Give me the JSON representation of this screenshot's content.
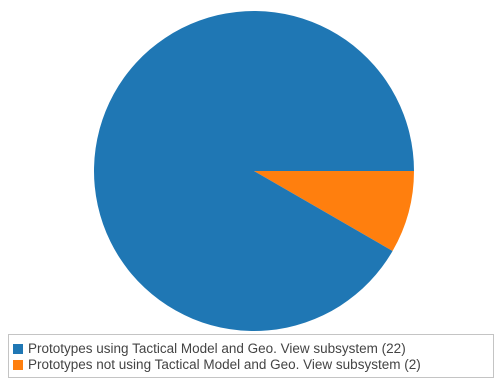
{
  "chart_data": {
    "type": "pie",
    "categories": [
      "Prototypes using Tactical Model and Geo. View subsystem (22)",
      "Prototypes not using Tactical Model and Geo. View subsystem (2)"
    ],
    "values": [
      22,
      2
    ],
    "colors": [
      "#1f77b4",
      "#ff7f0e"
    ],
    "start_angle_deg": 0,
    "direction": "clockwise",
    "legend_placement": "bottom-left"
  },
  "legend": {
    "items": [
      {
        "label": "Prototypes using Tactical Model and Geo. View subsystem (22)",
        "color": "#1f77b4"
      },
      {
        "label": "Prototypes not using Tactical Model and Geo. View subsystem (2)",
        "color": "#ff7f0e"
      }
    ]
  }
}
